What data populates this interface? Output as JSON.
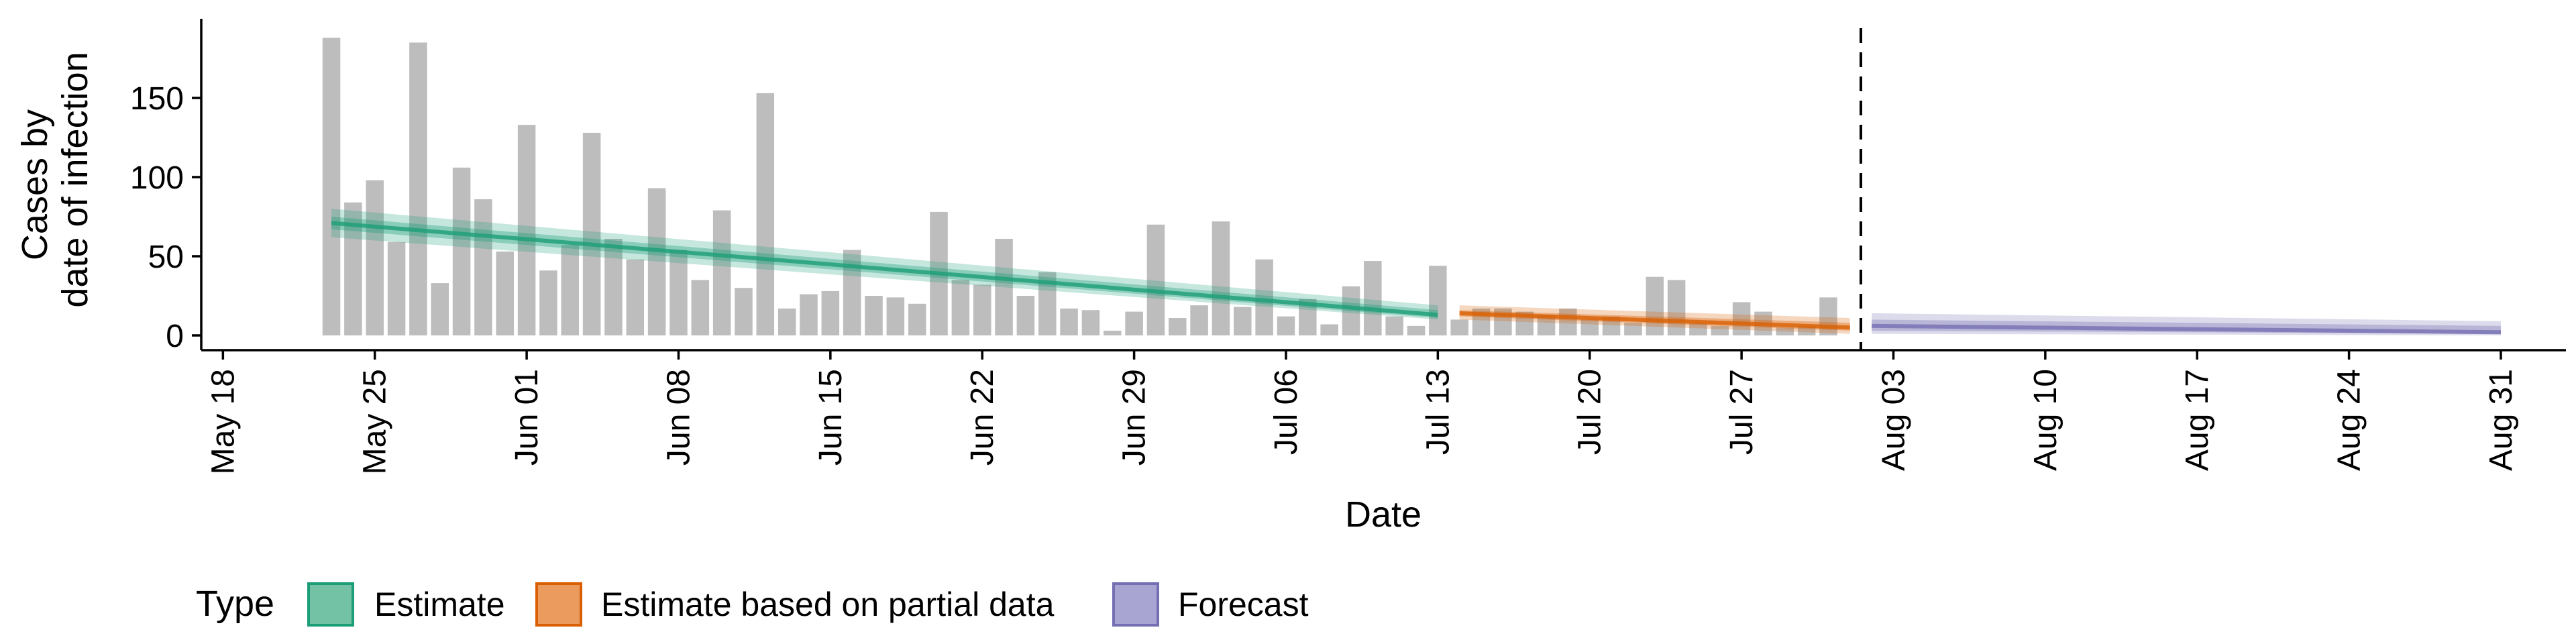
{
  "chart_data": {
    "type": "bar",
    "xlabel": "Date",
    "ylabel_lines": [
      "Cases by",
      "date of infection"
    ],
    "ylim": [
      0,
      200
    ],
    "yticks": [
      0,
      50,
      100,
      150
    ],
    "x_domain": [
      "2020-05-17",
      "2020-09-03"
    ],
    "x_ticks": [
      {
        "date": "2020-05-18",
        "label": "May 18"
      },
      {
        "date": "2020-05-25",
        "label": "May 25"
      },
      {
        "date": "2020-06-01",
        "label": "Jun 01"
      },
      {
        "date": "2020-06-08",
        "label": "Jun 08"
      },
      {
        "date": "2020-06-15",
        "label": "Jun 15"
      },
      {
        "date": "2020-06-22",
        "label": "Jun 22"
      },
      {
        "date": "2020-06-29",
        "label": "Jun 29"
      },
      {
        "date": "2020-07-06",
        "label": "Jul 06"
      },
      {
        "date": "2020-07-13",
        "label": "Jul 13"
      },
      {
        "date": "2020-07-20",
        "label": "Jul 20"
      },
      {
        "date": "2020-07-27",
        "label": "Jul 27"
      },
      {
        "date": "2020-08-03",
        "label": "Aug 03"
      },
      {
        "date": "2020-08-10",
        "label": "Aug 10"
      },
      {
        "date": "2020-08-17",
        "label": "Aug 17"
      },
      {
        "date": "2020-08-24",
        "label": "Aug 24"
      },
      {
        "date": "2020-08-31",
        "label": "Aug 31"
      }
    ],
    "bars": {
      "color": "#bdbdbd",
      "dates": [
        "2020-05-23",
        "2020-05-24",
        "2020-05-25",
        "2020-05-26",
        "2020-05-27",
        "2020-05-28",
        "2020-05-29",
        "2020-05-30",
        "2020-05-31",
        "2020-06-01",
        "2020-06-02",
        "2020-06-03",
        "2020-06-04",
        "2020-06-05",
        "2020-06-06",
        "2020-06-07",
        "2020-06-08",
        "2020-06-09",
        "2020-06-10",
        "2020-06-11",
        "2020-06-12",
        "2020-06-13",
        "2020-06-14",
        "2020-06-15",
        "2020-06-16",
        "2020-06-17",
        "2020-06-18",
        "2020-06-19",
        "2020-06-20",
        "2020-06-21",
        "2020-06-22",
        "2020-06-23",
        "2020-06-24",
        "2020-06-25",
        "2020-06-26",
        "2020-06-27",
        "2020-06-28",
        "2020-06-29",
        "2020-06-30",
        "2020-07-01",
        "2020-07-02",
        "2020-07-03",
        "2020-07-04",
        "2020-07-05",
        "2020-07-06",
        "2020-07-07",
        "2020-07-08",
        "2020-07-09",
        "2020-07-10",
        "2020-07-11",
        "2020-07-12",
        "2020-07-13",
        "2020-07-14",
        "2020-07-15",
        "2020-07-16",
        "2020-07-17",
        "2020-07-18",
        "2020-07-19",
        "2020-07-20",
        "2020-07-21",
        "2020-07-22",
        "2020-07-23",
        "2020-07-24",
        "2020-07-25",
        "2020-07-26",
        "2020-07-27",
        "2020-07-28",
        "2020-07-29",
        "2020-07-30",
        "2020-07-31"
      ],
      "values": [
        188,
        84,
        98,
        59,
        185,
        33,
        106,
        86,
        53,
        133,
        41,
        57,
        128,
        61,
        48,
        93,
        54,
        35,
        79,
        30,
        153,
        17,
        26,
        28,
        54,
        25,
        24,
        20,
        78,
        35,
        32,
        61,
        25,
        40,
        17,
        16,
        3,
        15,
        70,
        11,
        19,
        72,
        18,
        48,
        12,
        23,
        7,
        31,
        47,
        12,
        6,
        44,
        10,
        17,
        17,
        15,
        13,
        17,
        10,
        12,
        8,
        37,
        35,
        8,
        6,
        21,
        15,
        5,
        6,
        24
      ]
    },
    "series": [
      {
        "name": "Estimate",
        "color": "#1b9e77",
        "dates": [
          "2020-05-23",
          "2020-07-13"
        ],
        "median": [
          71,
          13
        ],
        "inner_band": {
          "lower": [
            67,
            11
          ],
          "upper": [
            75,
            16
          ]
        },
        "outer_band": {
          "lower": [
            62,
            10
          ],
          "upper": [
            80,
            19
          ]
        }
      },
      {
        "name": "Estimate based on partial data",
        "color": "#d95f02",
        "dates": [
          "2020-07-14",
          "2020-08-01"
        ],
        "median": [
          14,
          5
        ],
        "inner_band": {
          "lower": [
            12,
            3
          ],
          "upper": [
            16,
            8
          ]
        },
        "outer_band": {
          "lower": [
            10,
            1
          ],
          "upper": [
            19,
            11
          ]
        }
      },
      {
        "name": "Forecast",
        "color": "#7570b3",
        "dates": [
          "2020-08-02",
          "2020-08-31"
        ],
        "median": [
          6,
          2
        ],
        "inner_band": {
          "lower": [
            3,
            1
          ],
          "upper": [
            10,
            6
          ]
        },
        "outer_band": {
          "lower": [
            1,
            0
          ],
          "upper": [
            14,
            9
          ]
        }
      }
    ],
    "forecast_date": "2020-08-01",
    "legend": {
      "title": "Type",
      "position": "bottom",
      "items": [
        "Estimate",
        "Estimate based on partial data",
        "Forecast"
      ]
    }
  }
}
